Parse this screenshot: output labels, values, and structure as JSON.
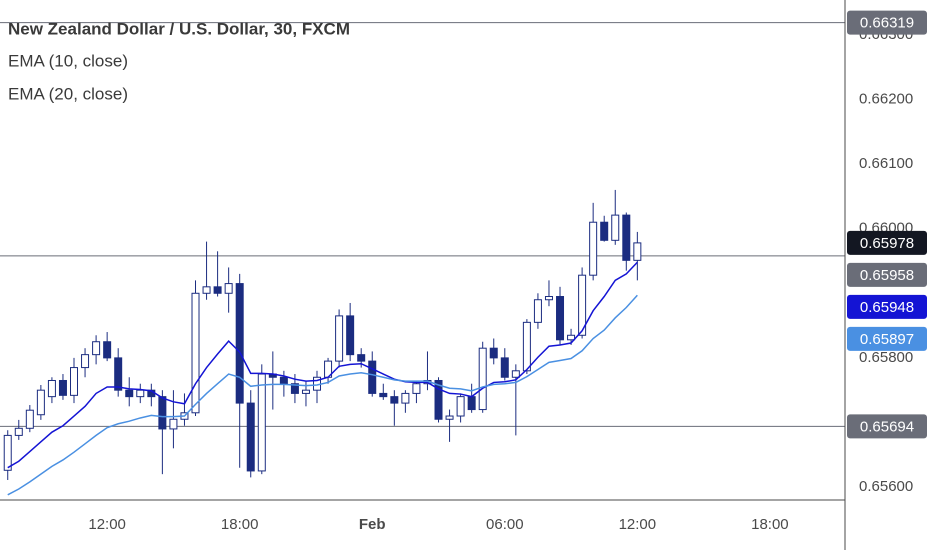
{
  "chart_data": {
    "type": "candlestick",
    "title": "New Zealand Dollar / U.S. Dollar, 30, FXCM",
    "candle_color": "#1b2c80",
    "up_fill": "#ffffff",
    "x": [
      -9,
      -8,
      -7,
      -6,
      -5,
      -4,
      -3,
      -2,
      -1,
      0,
      1,
      2,
      3,
      4,
      5,
      6,
      7,
      8,
      9,
      10,
      11,
      12,
      13,
      14,
      15,
      16,
      17,
      18,
      19,
      20,
      21,
      22,
      23,
      24,
      25,
      26,
      27,
      28,
      29,
      30,
      31,
      32,
      33,
      34,
      35,
      36,
      37,
      38,
      39,
      40,
      41,
      42,
      43,
      44,
      45,
      46,
      47,
      48
    ],
    "open": [
      0.65626,
      0.6568,
      0.65691,
      0.65712,
      0.6574,
      0.65765,
      0.65742,
      0.65785,
      0.65805,
      0.65825,
      0.658,
      0.6575,
      0.6574,
      0.6575,
      0.6574,
      0.6569,
      0.65705,
      0.65715,
      0.659,
      0.6591,
      0.659,
      0.65915,
      0.6573,
      0.65625,
      0.65775,
      0.6577,
      0.6576,
      0.65745,
      0.6575,
      0.6577,
      0.65795,
      0.65865,
      0.65805,
      0.65795,
      0.65745,
      0.6574,
      0.6573,
      0.65745,
      0.6576,
      0.65765,
      0.65705,
      0.6571,
      0.6574,
      0.6572,
      0.65815,
      0.658,
      0.6577,
      0.6578,
      0.65855,
      0.6589,
      0.65895,
      0.65828,
      0.65835,
      0.65928,
      0.6601,
      0.65982,
      0.66021,
      0.65951
    ],
    "high": [
      0.65688,
      0.65704,
      0.65727,
      0.65758,
      0.6577,
      0.65775,
      0.658,
      0.65815,
      0.65835,
      0.6584,
      0.65815,
      0.6577,
      0.6576,
      0.6576,
      0.6575,
      0.6575,
      0.65745,
      0.6592,
      0.6598,
      0.65965,
      0.6594,
      0.6593,
      0.6575,
      0.6579,
      0.6581,
      0.6578,
      0.65775,
      0.65765,
      0.6578,
      0.658,
      0.65875,
      0.65885,
      0.65815,
      0.6581,
      0.6576,
      0.6575,
      0.6575,
      0.65765,
      0.6581,
      0.6577,
      0.6572,
      0.65745,
      0.6576,
      0.65825,
      0.6583,
      0.65815,
      0.6579,
      0.6586,
      0.659,
      0.6592,
      0.6591,
      0.65845,
      0.6594,
      0.6604,
      0.6602,
      0.6606,
      0.66025,
      0.65995
    ],
    "low": [
      0.65611,
      0.65673,
      0.65685,
      0.65704,
      0.6573,
      0.65735,
      0.6573,
      0.6577,
      0.6579,
      0.65795,
      0.6574,
      0.65725,
      0.6573,
      0.65725,
      0.6562,
      0.6566,
      0.65695,
      0.6571,
      0.6589,
      0.65895,
      0.6587,
      0.6563,
      0.65615,
      0.6562,
      0.6572,
      0.6574,
      0.6573,
      0.65725,
      0.6573,
      0.6576,
      0.65785,
      0.65795,
      0.65785,
      0.6574,
      0.65735,
      0.65695,
      0.65715,
      0.6573,
      0.6575,
      0.657,
      0.6567,
      0.657,
      0.65715,
      0.65715,
      0.6579,
      0.65765,
      0.6568,
      0.65775,
      0.65845,
      0.6588,
      0.6582,
      0.6582,
      0.6583,
      0.6592,
      0.6598,
      0.65975,
      0.65935,
      0.6592
    ],
    "close": [
      0.6568,
      0.65691,
      0.65719,
      0.6575,
      0.65765,
      0.65742,
      0.65785,
      0.65805,
      0.65825,
      0.658,
      0.6575,
      0.6574,
      0.6575,
      0.6574,
      0.6569,
      0.65705,
      0.65715,
      0.659,
      0.6591,
      0.659,
      0.65915,
      0.6573,
      0.65625,
      0.65775,
      0.6577,
      0.6576,
      0.65745,
      0.6575,
      0.6577,
      0.65795,
      0.65865,
      0.65805,
      0.65795,
      0.65745,
      0.6574,
      0.6573,
      0.65745,
      0.6576,
      0.65765,
      0.65705,
      0.6571,
      0.6574,
      0.6572,
      0.65815,
      0.658,
      0.6577,
      0.6578,
      0.65855,
      0.6589,
      0.65895,
      0.65828,
      0.65835,
      0.65928,
      0.6601,
      0.65982,
      0.66021,
      0.65951,
      0.65978
    ],
    "last_price_color": "#131722",
    "series": [
      {
        "name": "EMA (10, close)",
        "color": "#1414d4",
        "values": [
          0.6563,
          0.6564,
          0.65655,
          0.6567,
          0.65685,
          0.65695,
          0.6571,
          0.65725,
          0.65745,
          0.65755,
          0.65755,
          0.65752,
          0.65751,
          0.65749,
          0.65738,
          0.65732,
          0.65729,
          0.6576,
          0.65785,
          0.65806,
          0.65826,
          0.65809,
          0.65776,
          0.65776,
          0.65775,
          0.65772,
          0.65767,
          0.65764,
          0.65765,
          0.6577,
          0.65787,
          0.6579,
          0.65791,
          0.65783,
          0.65775,
          0.65767,
          0.65763,
          0.65762,
          0.65762,
          0.65752,
          0.65745,
          0.65744,
          0.6574,
          0.65753,
          0.65762,
          0.65763,
          0.65766,
          0.65782,
          0.65801,
          0.65818,
          0.6582,
          0.65823,
          0.65842,
          0.65873,
          0.65895,
          0.6592,
          0.6593,
          0.65948
        ]
      },
      {
        "name": "EMA (20, close)",
        "color": "#4a90e2",
        "values": [
          0.65588,
          0.65597,
          0.65608,
          0.6562,
          0.65632,
          0.65642,
          0.65654,
          0.65667,
          0.6568,
          0.65692,
          0.65698,
          0.65702,
          0.65707,
          0.65711,
          0.65709,
          0.65709,
          0.6571,
          0.65728,
          0.65745,
          0.6576,
          0.65775,
          0.6577,
          0.65756,
          0.65758,
          0.65759,
          0.65759,
          0.65758,
          0.65757,
          0.65758,
          0.65762,
          0.65772,
          0.65775,
          0.65777,
          0.65774,
          0.6577,
          0.65766,
          0.65764,
          0.65764,
          0.65764,
          0.65758,
          0.65753,
          0.65752,
          0.65749,
          0.65755,
          0.65759,
          0.6576,
          0.65762,
          0.65771,
          0.65782,
          0.65793,
          0.65796,
          0.65799,
          0.65811,
          0.6583,
          0.65843,
          0.65862,
          0.65878,
          0.65897
        ]
      }
    ],
    "levels": [
      0.66319,
      0.65958,
      0.65694
    ],
    "level_color": "#6a6d78",
    "xlim": [
      -9.7,
      66.8
    ],
    "xticks": [
      {
        "value": 0,
        "label": "12:00"
      },
      {
        "value": 12,
        "label": "18:00"
      },
      {
        "value": 24,
        "label": "Feb"
      },
      {
        "value": 36,
        "label": "06:00"
      },
      {
        "value": 48,
        "label": "12:00"
      },
      {
        "value": 60,
        "label": "18:00"
      }
    ],
    "ylim": [
      0.6558,
      0.66354
    ],
    "yticks": [
      {
        "value": 0.663,
        "label": "0.66300"
      },
      {
        "value": 0.662,
        "label": "0.66200"
      },
      {
        "value": 0.661,
        "label": "0.66100"
      },
      {
        "value": 0.66,
        "label": "0.66000"
      },
      {
        "value": 0.658,
        "label": "0.65800"
      },
      {
        "value": 0.656,
        "label": "0.65600"
      }
    ]
  }
}
